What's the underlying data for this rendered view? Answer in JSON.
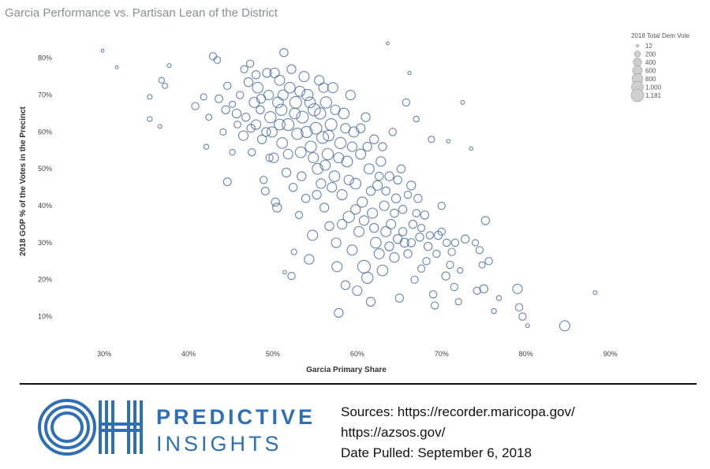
{
  "chart_data": {
    "type": "scatter",
    "title": "Garcia Performance vs. Partisan Lean of the District",
    "xlabel": "Garcia Primary Share",
    "ylabel": "2018 GOP % of the Votes in the Precinct",
    "xlim": [
      0.27,
      0.92
    ],
    "ylim": [
      0.05,
      0.84
    ],
    "x_ticks": [
      "30%",
      "40%",
      "50%",
      "60%",
      "70%",
      "80%",
      "90%"
    ],
    "x_tick_values": [
      0.3,
      0.4,
      0.5,
      0.6,
      0.7,
      0.8,
      0.9
    ],
    "y_ticks": [
      "80%",
      "70%",
      "60%",
      "50%",
      "40%",
      "30%",
      "20%",
      "10%"
    ],
    "y_tick_values": [
      0.8,
      0.7,
      0.6,
      0.5,
      0.4,
      0.3,
      0.2,
      0.1
    ],
    "size_legend": {
      "title": "2018 Total Dem Vote",
      "entries": [
        "12",
        "200",
        "400",
        "600",
        "800",
        "1,000",
        "1,181"
      ],
      "values": [
        12,
        200,
        400,
        600,
        800,
        1000,
        1181
      ]
    },
    "marker_color": "#4a6fa5",
    "grid": false,
    "legend_position": "top-right",
    "points": [
      {
        "x": 0.298,
        "y": 0.82,
        "s": 12
      },
      {
        "x": 0.315,
        "y": 0.775,
        "s": 12
      },
      {
        "x": 0.354,
        "y": 0.695,
        "s": 80
      },
      {
        "x": 0.354,
        "y": 0.635,
        "s": 90
      },
      {
        "x": 0.366,
        "y": 0.615,
        "s": 40
      },
      {
        "x": 0.368,
        "y": 0.74,
        "s": 150
      },
      {
        "x": 0.372,
        "y": 0.725,
        "s": 120
      },
      {
        "x": 0.377,
        "y": 0.78,
        "s": 40
      },
      {
        "x": 0.408,
        "y": 0.67,
        "s": 300
      },
      {
        "x": 0.418,
        "y": 0.695,
        "s": 200
      },
      {
        "x": 0.421,
        "y": 0.56,
        "s": 100
      },
      {
        "x": 0.424,
        "y": 0.64,
        "s": 180
      },
      {
        "x": 0.429,
        "y": 0.805,
        "s": 300
      },
      {
        "x": 0.434,
        "y": 0.795,
        "s": 250
      },
      {
        "x": 0.436,
        "y": 0.69,
        "s": 350
      },
      {
        "x": 0.441,
        "y": 0.6,
        "s": 200
      },
      {
        "x": 0.444,
        "y": 0.66,
        "s": 400
      },
      {
        "x": 0.446,
        "y": 0.465,
        "s": 350
      },
      {
        "x": 0.452,
        "y": 0.545,
        "s": 150
      },
      {
        "x": 0.457,
        "y": 0.65,
        "s": 500
      },
      {
        "x": 0.461,
        "y": 0.7,
        "s": 300
      },
      {
        "x": 0.465,
        "y": 0.59,
        "s": 600
      },
      {
        "x": 0.468,
        "y": 0.64,
        "s": 400
      },
      {
        "x": 0.471,
        "y": 0.735,
        "s": 500
      },
      {
        "x": 0.473,
        "y": 0.785,
        "s": 300
      },
      {
        "x": 0.475,
        "y": 0.545,
        "s": 300
      },
      {
        "x": 0.478,
        "y": 0.68,
        "s": 700
      },
      {
        "x": 0.48,
        "y": 0.62,
        "s": 600
      },
      {
        "x": 0.482,
        "y": 0.72,
        "s": 800
      },
      {
        "x": 0.485,
        "y": 0.66,
        "s": 400
      },
      {
        "x": 0.487,
        "y": 0.58,
        "s": 500
      },
      {
        "x": 0.489,
        "y": 0.47,
        "s": 300
      },
      {
        "x": 0.491,
        "y": 0.44,
        "s": 350
      },
      {
        "x": 0.493,
        "y": 0.76,
        "s": 500
      },
      {
        "x": 0.495,
        "y": 0.7,
        "s": 600
      },
      {
        "x": 0.497,
        "y": 0.64,
        "s": 900
      },
      {
        "x": 0.499,
        "y": 0.6,
        "s": 700
      },
      {
        "x": 0.501,
        "y": 0.53,
        "s": 600
      },
      {
        "x": 0.503,
        "y": 0.41,
        "s": 400
      },
      {
        "x": 0.505,
        "y": 0.395,
        "s": 500
      },
      {
        "x": 0.506,
        "y": 0.68,
        "s": 800
      },
      {
        "x": 0.508,
        "y": 0.74,
        "s": 700
      },
      {
        "x": 0.51,
        "y": 0.66,
        "s": 900
      },
      {
        "x": 0.511,
        "y": 0.57,
        "s": 800
      },
      {
        "x": 0.513,
        "y": 0.815,
        "s": 400
      },
      {
        "x": 0.514,
        "y": 0.22,
        "s": 30
      },
      {
        "x": 0.516,
        "y": 0.49,
        "s": 500
      },
      {
        "x": 0.518,
        "y": 0.62,
        "s": 1000
      },
      {
        "x": 0.52,
        "y": 0.72,
        "s": 800
      },
      {
        "x": 0.522,
        "y": 0.21,
        "s": 300
      },
      {
        "x": 0.524,
        "y": 0.45,
        "s": 400
      },
      {
        "x": 0.525,
        "y": 0.275,
        "s": 150
      },
      {
        "x": 0.527,
        "y": 0.68,
        "s": 1000
      },
      {
        "x": 0.529,
        "y": 0.595,
        "s": 900
      },
      {
        "x": 0.531,
        "y": 0.375,
        "s": 300
      },
      {
        "x": 0.533,
        "y": 0.545,
        "s": 800
      },
      {
        "x": 0.535,
        "y": 0.64,
        "s": 1000
      },
      {
        "x": 0.537,
        "y": 0.75,
        "s": 700
      },
      {
        "x": 0.539,
        "y": 0.42,
        "s": 400
      },
      {
        "x": 0.541,
        "y": 0.7,
        "s": 900
      },
      {
        "x": 0.543,
        "y": 0.255,
        "s": 600
      },
      {
        "x": 0.545,
        "y": 0.56,
        "s": 900
      },
      {
        "x": 0.547,
        "y": 0.32,
        "s": 700
      },
      {
        "x": 0.549,
        "y": 0.66,
        "s": 1100
      },
      {
        "x": 0.551,
        "y": 0.61,
        "s": 1000
      },
      {
        "x": 0.553,
        "y": 0.5,
        "s": 800
      },
      {
        "x": 0.555,
        "y": 0.74,
        "s": 600
      },
      {
        "x": 0.557,
        "y": 0.46,
        "s": 600
      },
      {
        "x": 0.559,
        "y": 0.585,
        "s": 1000
      },
      {
        "x": 0.561,
        "y": 0.395,
        "s": 500
      },
      {
        "x": 0.563,
        "y": 0.68,
        "s": 900
      },
      {
        "x": 0.565,
        "y": 0.54,
        "s": 900
      },
      {
        "x": 0.567,
        "y": 0.345,
        "s": 500
      },
      {
        "x": 0.569,
        "y": 0.62,
        "s": 1000
      },
      {
        "x": 0.571,
        "y": 0.72,
        "s": 700
      },
      {
        "x": 0.573,
        "y": 0.48,
        "s": 800
      },
      {
        "x": 0.575,
        "y": 0.3,
        "s": 600
      },
      {
        "x": 0.576,
        "y": 0.235,
        "s": 700
      },
      {
        "x": 0.578,
        "y": 0.11,
        "s": 500
      },
      {
        "x": 0.58,
        "y": 0.57,
        "s": 900
      },
      {
        "x": 0.582,
        "y": 0.43,
        "s": 700
      },
      {
        "x": 0.584,
        "y": 0.65,
        "s": 800
      },
      {
        "x": 0.586,
        "y": 0.185,
        "s": 500
      },
      {
        "x": 0.588,
        "y": 0.52,
        "s": 800
      },
      {
        "x": 0.59,
        "y": 0.37,
        "s": 900
      },
      {
        "x": 0.592,
        "y": 0.7,
        "s": 600
      },
      {
        "x": 0.594,
        "y": 0.28,
        "s": 700
      },
      {
        "x": 0.596,
        "y": 0.6,
        "s": 700
      },
      {
        "x": 0.598,
        "y": 0.46,
        "s": 800
      },
      {
        "x": 0.6,
        "y": 0.17,
        "s": 600
      },
      {
        "x": 0.602,
        "y": 0.33,
        "s": 700
      },
      {
        "x": 0.604,
        "y": 0.54,
        "s": 700
      },
      {
        "x": 0.606,
        "y": 0.41,
        "s": 700
      },
      {
        "x": 0.608,
        "y": 0.235,
        "s": 1181
      },
      {
        "x": 0.61,
        "y": 0.64,
        "s": 500
      },
      {
        "x": 0.612,
        "y": 0.205,
        "s": 900
      },
      {
        "x": 0.614,
        "y": 0.5,
        "s": 700
      },
      {
        "x": 0.616,
        "y": 0.14,
        "s": 500
      },
      {
        "x": 0.618,
        "y": 0.38,
        "s": 700
      },
      {
        "x": 0.62,
        "y": 0.58,
        "s": 500
      },
      {
        "x": 0.622,
        "y": 0.3,
        "s": 800
      },
      {
        "x": 0.624,
        "y": 0.455,
        "s": 600
      },
      {
        "x": 0.626,
        "y": 0.27,
        "s": 700
      },
      {
        "x": 0.628,
        "y": 0.52,
        "s": 600
      },
      {
        "x": 0.63,
        "y": 0.225,
        "s": 800
      },
      {
        "x": 0.632,
        "y": 0.4,
        "s": 600
      },
      {
        "x": 0.634,
        "y": 0.33,
        "s": 700
      },
      {
        "x": 0.636,
        "y": 0.84,
        "s": 12
      },
      {
        "x": 0.638,
        "y": 0.48,
        "s": 500
      },
      {
        "x": 0.64,
        "y": 0.35,
        "s": 600
      },
      {
        "x": 0.642,
        "y": 0.6,
        "s": 300
      },
      {
        "x": 0.644,
        "y": 0.26,
        "s": 600
      },
      {
        "x": 0.646,
        "y": 0.42,
        "s": 500
      },
      {
        "x": 0.648,
        "y": 0.31,
        "s": 500
      },
      {
        "x": 0.65,
        "y": 0.15,
        "s": 400
      },
      {
        "x": 0.652,
        "y": 0.5,
        "s": 400
      },
      {
        "x": 0.654,
        "y": 0.39,
        "s": 400
      },
      {
        "x": 0.656,
        "y": 0.3,
        "s": 500
      },
      {
        "x": 0.658,
        "y": 0.68,
        "s": 300
      },
      {
        "x": 0.66,
        "y": 0.27,
        "s": 400
      },
      {
        "x": 0.662,
        "y": 0.76,
        "s": 20
      },
      {
        "x": 0.664,
        "y": 0.455,
        "s": 500
      },
      {
        "x": 0.666,
        "y": 0.35,
        "s": 400
      },
      {
        "x": 0.668,
        "y": 0.2,
        "s": 300
      },
      {
        "x": 0.67,
        "y": 0.635,
        "s": 150
      },
      {
        "x": 0.672,
        "y": 0.42,
        "s": 400
      },
      {
        "x": 0.674,
        "y": 0.315,
        "s": 400
      },
      {
        "x": 0.676,
        "y": 0.23,
        "s": 300
      },
      {
        "x": 0.68,
        "y": 0.375,
        "s": 400
      },
      {
        "x": 0.684,
        "y": 0.29,
        "s": 400
      },
      {
        "x": 0.688,
        "y": 0.58,
        "s": 200
      },
      {
        "x": 0.69,
        "y": 0.16,
        "s": 300
      },
      {
        "x": 0.692,
        "y": 0.13,
        "s": 300
      },
      {
        "x": 0.696,
        "y": 0.32,
        "s": 400
      },
      {
        "x": 0.7,
        "y": 0.4,
        "s": 300
      },
      {
        "x": 0.705,
        "y": 0.21,
        "s": 400
      },
      {
        "x": 0.708,
        "y": 0.575,
        "s": 30
      },
      {
        "x": 0.712,
        "y": 0.275,
        "s": 300
      },
      {
        "x": 0.715,
        "y": 0.18,
        "s": 300
      },
      {
        "x": 0.72,
        "y": 0.14,
        "s": 200
      },
      {
        "x": 0.722,
        "y": 0.225,
        "s": 150
      },
      {
        "x": 0.725,
        "y": 0.68,
        "s": 40
      },
      {
        "x": 0.728,
        "y": 0.31,
        "s": 400
      },
      {
        "x": 0.735,
        "y": 0.555,
        "s": 30
      },
      {
        "x": 0.745,
        "y": 0.28,
        "s": 300
      },
      {
        "x": 0.75,
        "y": 0.175,
        "s": 400
      },
      {
        "x": 0.752,
        "y": 0.36,
        "s": 400
      },
      {
        "x": 0.756,
        "y": 0.25,
        "s": 300
      },
      {
        "x": 0.762,
        "y": 0.115,
        "s": 100
      },
      {
        "x": 0.79,
        "y": 0.175,
        "s": 600
      },
      {
        "x": 0.792,
        "y": 0.125,
        "s": 300
      },
      {
        "x": 0.796,
        "y": 0.1,
        "s": 300
      },
      {
        "x": 0.802,
        "y": 0.075,
        "s": 40
      },
      {
        "x": 0.846,
        "y": 0.075,
        "s": 700
      },
      {
        "x": 0.882,
        "y": 0.165,
        "s": 40
      },
      {
        "x": 0.446,
        "y": 0.725,
        "s": 300
      },
      {
        "x": 0.452,
        "y": 0.675,
        "s": 200
      },
      {
        "x": 0.458,
        "y": 0.62,
        "s": 250
      },
      {
        "x": 0.466,
        "y": 0.77,
        "s": 300
      },
      {
        "x": 0.474,
        "y": 0.61,
        "s": 400
      },
      {
        "x": 0.48,
        "y": 0.755,
        "s": 400
      },
      {
        "x": 0.486,
        "y": 0.69,
        "s": 500
      },
      {
        "x": 0.492,
        "y": 0.6,
        "s": 500
      },
      {
        "x": 0.496,
        "y": 0.53,
        "s": 300
      },
      {
        "x": 0.502,
        "y": 0.76,
        "s": 600
      },
      {
        "x": 0.508,
        "y": 0.62,
        "s": 800
      },
      {
        "x": 0.512,
        "y": 0.7,
        "s": 700
      },
      {
        "x": 0.518,
        "y": 0.54,
        "s": 600
      },
      {
        "x": 0.522,
        "y": 0.77,
        "s": 500
      },
      {
        "x": 0.526,
        "y": 0.65,
        "s": 800
      },
      {
        "x": 0.532,
        "y": 0.71,
        "s": 700
      },
      {
        "x": 0.534,
        "y": 0.48,
        "s": 500
      },
      {
        "x": 0.54,
        "y": 0.6,
        "s": 900
      },
      {
        "x": 0.544,
        "y": 0.68,
        "s": 800
      },
      {
        "x": 0.548,
        "y": 0.53,
        "s": 700
      },
      {
        "x": 0.552,
        "y": 0.43,
        "s": 500
      },
      {
        "x": 0.556,
        "y": 0.65,
        "s": 900
      },
      {
        "x": 0.56,
        "y": 0.72,
        "s": 600
      },
      {
        "x": 0.562,
        "y": 0.51,
        "s": 700
      },
      {
        "x": 0.566,
        "y": 0.59,
        "s": 800
      },
      {
        "x": 0.57,
        "y": 0.45,
        "s": 600
      },
      {
        "x": 0.574,
        "y": 0.66,
        "s": 600
      },
      {
        "x": 0.578,
        "y": 0.53,
        "s": 700
      },
      {
        "x": 0.582,
        "y": 0.35,
        "s": 600
      },
      {
        "x": 0.586,
        "y": 0.61,
        "s": 600
      },
      {
        "x": 0.59,
        "y": 0.47,
        "s": 600
      },
      {
        "x": 0.594,
        "y": 0.56,
        "s": 600
      },
      {
        "x": 0.598,
        "y": 0.39,
        "s": 600
      },
      {
        "x": 0.604,
        "y": 0.61,
        "s": 500
      },
      {
        "x": 0.608,
        "y": 0.36,
        "s": 600
      },
      {
        "x": 0.612,
        "y": 0.56,
        "s": 500
      },
      {
        "x": 0.616,
        "y": 0.44,
        "s": 500
      },
      {
        "x": 0.62,
        "y": 0.34,
        "s": 500
      },
      {
        "x": 0.626,
        "y": 0.48,
        "s": 400
      },
      {
        "x": 0.63,
        "y": 0.56,
        "s": 400
      },
      {
        "x": 0.634,
        "y": 0.44,
        "s": 400
      },
      {
        "x": 0.638,
        "y": 0.29,
        "s": 500
      },
      {
        "x": 0.644,
        "y": 0.38,
        "s": 400
      },
      {
        "x": 0.648,
        "y": 0.47,
        "s": 400
      },
      {
        "x": 0.654,
        "y": 0.33,
        "s": 400
      },
      {
        "x": 0.66,
        "y": 0.43,
        "s": 300
      },
      {
        "x": 0.664,
        "y": 0.3,
        "s": 400
      },
      {
        "x": 0.67,
        "y": 0.38,
        "s": 300
      },
      {
        "x": 0.676,
        "y": 0.34,
        "s": 300
      },
      {
        "x": 0.682,
        "y": 0.25,
        "s": 300
      },
      {
        "x": 0.686,
        "y": 0.32,
        "s": 300
      },
      {
        "x": 0.694,
        "y": 0.27,
        "s": 300
      },
      {
        "x": 0.7,
        "y": 0.33,
        "s": 300
      },
      {
        "x": 0.706,
        "y": 0.3,
        "s": 300
      },
      {
        "x": 0.71,
        "y": 0.24,
        "s": 300
      },
      {
        "x": 0.716,
        "y": 0.3,
        "s": 300
      },
      {
        "x": 0.74,
        "y": 0.3,
        "s": 200
      },
      {
        "x": 0.748,
        "y": 0.24,
        "s": 200
      },
      {
        "x": 0.742,
        "y": 0.17,
        "s": 300
      },
      {
        "x": 0.768,
        "y": 0.15,
        "s": 100
      }
    ]
  },
  "footer": {
    "brand_line1": "PREDICTIVE",
    "brand_line2": "INSIGHTS",
    "sources_line1": "Sources: https://recorder.maricopa.gov/",
    "sources_line2": "https://azsos.gov/",
    "sources_line3": "Date Pulled: September 6, 2018",
    "brand_color": "#2f6fb5"
  }
}
